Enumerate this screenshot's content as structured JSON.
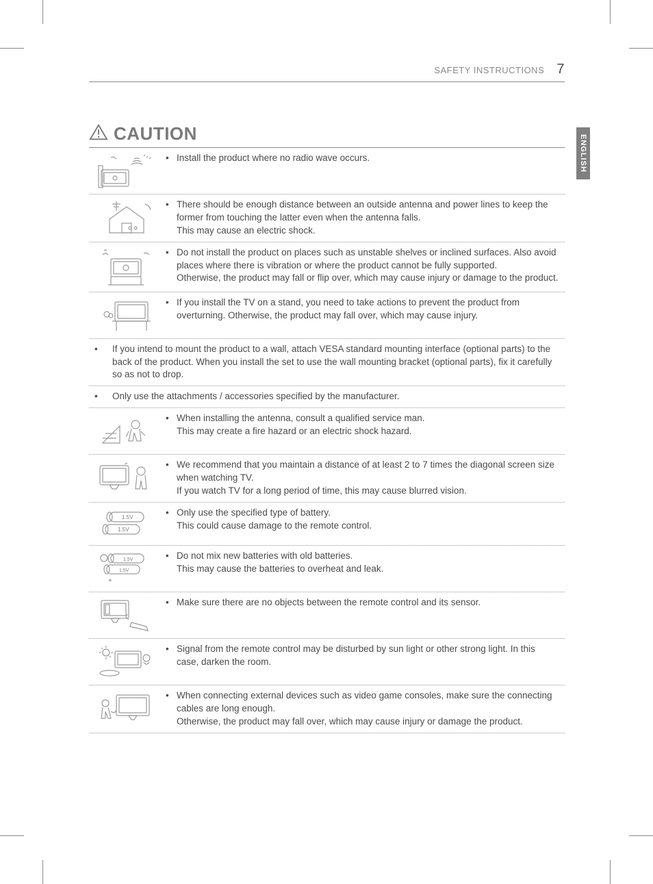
{
  "header": {
    "section_title": "SAFETY INSTRUCTIONS",
    "page_number": "7"
  },
  "language_tab": "ENGLISH",
  "caution": {
    "title": "CAUTION",
    "rows": [
      {
        "type": "icon_row",
        "icon": "radio-wave",
        "text": "Install the product where no radio wave occurs."
      },
      {
        "type": "icon_row",
        "icon": "antenna-house",
        "text": "There should be enough distance between an outside antenna and power lines to keep the former from touching the latter even when the antenna falls.\nThis may cause an electric shock."
      },
      {
        "type": "icon_row",
        "icon": "unstable-shelf",
        "text": "Do not install the product on places such as unstable shelves or inclined surfaces. Also avoid places where there is vibration or where the product cannot be fully supported.\nOtherwise, the product may fall or flip over, which may cause injury or damage to the product."
      },
      {
        "type": "icon_row",
        "icon": "tv-stand",
        "text": "If you install the TV on a stand, you need to take actions to prevent the product from overturning. Otherwise, the product may fall over, which may cause injury."
      },
      {
        "type": "full_row",
        "text": "If you intend to mount the product to a wall, attach VESA standard mounting interface (optional parts) to the back of the product. When you install the set to use the wall mounting bracket (optional parts), fix it carefully so as not to drop."
      },
      {
        "type": "full_row",
        "text": "Only use the attachments / accessories specified by the manufacturer."
      },
      {
        "type": "icon_row",
        "icon": "antenna-service",
        "text": "When installing the antenna, consult a qualified service man.\nThis may create a fire hazard or an electric shock hazard."
      },
      {
        "type": "icon_row",
        "icon": "tv-distance",
        "text": "We recommend that you maintain a distance of at least 2 to 7 times the diagonal screen size when watching TV.\nIf you watch TV for a long period of time, this may cause blurred vision."
      },
      {
        "type": "icon_row",
        "icon": "battery-type",
        "text": "Only use the specified type of battery.\nThis could cause damage to the remote control."
      },
      {
        "type": "icon_row",
        "icon": "battery-mix",
        "text": "Do not mix new batteries with old batteries.\nThis may cause the batteries to overheat and leak."
      },
      {
        "type": "icon_row",
        "icon": "remote-sensor",
        "text": "Make sure there are no objects between the remote control and its sensor."
      },
      {
        "type": "icon_row",
        "icon": "sunlight-remote",
        "text": "Signal from the remote control may be disturbed by sun light or other strong light. In this case, darken the room."
      },
      {
        "type": "icon_row",
        "icon": "cable-length",
        "text": "When connecting external devices such as video game consoles, make sure the connecting cables are long enough.\nOtherwise, the product may fall over, which may cause injury or damage the product."
      }
    ]
  },
  "colors": {
    "text": "#4a4a4a",
    "muted": "#888888",
    "border": "#888888",
    "dotted_border": "#999999",
    "lang_tab_bg": "#808080",
    "lang_tab_text": "#ffffff",
    "icon_stroke": "#9a9a9a"
  }
}
